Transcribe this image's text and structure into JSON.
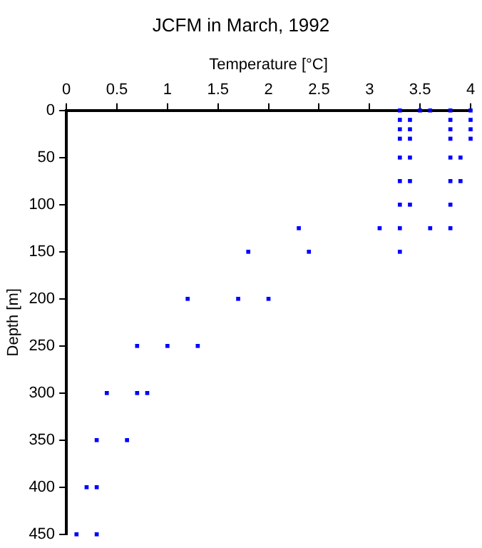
{
  "chart_data": {
    "type": "scatter",
    "title": "JCFM in March, 1992",
    "xlabel": "Temperature [°C]",
    "ylabel": "Depth [m]",
    "series": [
      {
        "color": "#0000ff",
        "x": [
          3.3,
          3.5,
          3.6,
          3.8,
          4.0,
          3.3,
          3.4,
          3.8,
          4.0,
          3.3,
          3.4,
          3.8,
          4.0,
          3.3,
          3.4,
          3.8,
          4.0,
          3.3,
          3.4,
          3.8,
          3.9,
          3.3,
          3.4,
          3.8,
          3.9,
          3.3,
          3.4,
          3.8,
          2.3,
          3.1,
          3.3,
          3.6,
          3.8,
          1.8,
          2.4,
          3.3,
          1.2,
          1.7,
          2.0,
          0.7,
          1.0,
          1.3,
          0.4,
          0.7,
          0.8,
          0.3,
          0.6,
          0.2,
          0.3,
          0.1,
          0.3
        ],
        "values": [
          0,
          0,
          0,
          0,
          0,
          10,
          10,
          10,
          10,
          20,
          20,
          20,
          20,
          30,
          30,
          30,
          30,
          50,
          50,
          50,
          50,
          75,
          75,
          75,
          75,
          100,
          100,
          100,
          125,
          125,
          125,
          125,
          125,
          150,
          150,
          150,
          200,
          200,
          200,
          250,
          250,
          250,
          300,
          300,
          300,
          350,
          350,
          400,
          400,
          450,
          450
        ]
      }
    ],
    "xlim": [
      0,
      4
    ],
    "xticks": [
      0,
      0.5,
      1,
      1.5,
      2,
      2.5,
      3,
      3.5,
      4
    ],
    "ylim": [
      450,
      0
    ],
    "yticks": [
      0,
      50,
      100,
      150,
      200,
      250,
      300,
      350,
      400,
      450
    ],
    "grid": false,
    "legend": false,
    "marker": "square"
  }
}
